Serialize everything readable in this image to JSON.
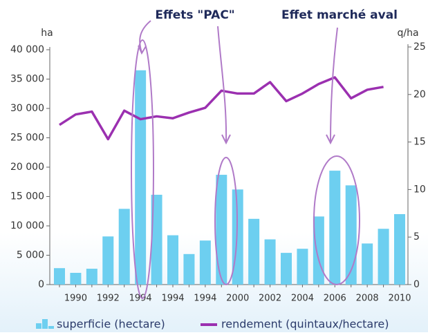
{
  "chart_data": {
    "type": "bar-line",
    "annotations": [
      "Effets \"PAC\"",
      "Effet marché aval"
    ],
    "y_label": "ha",
    "y2_label": "q/ha",
    "categories": [
      null,
      "1990",
      null,
      "1992",
      null,
      "1994",
      null,
      "1994",
      null,
      "1994",
      null,
      "2000",
      null,
      "2002",
      null,
      "2004",
      null,
      "2006",
      null,
      "2008",
      null,
      "2010"
    ],
    "ylim": [
      0,
      40000
    ],
    "yticks": [
      0,
      {
        "value": 5000,
        "label": "5 000"
      },
      {
        "value": 10000,
        "label": "10 000"
      },
      {
        "value": 15000,
        "label": "15 000"
      },
      {
        "value": 20000,
        "label": "20 000"
      },
      {
        "value": 25000,
        "label": "25 000"
      },
      {
        "value": 30000,
        "label": "30 000"
      },
      {
        "value": 35000,
        "label": "35 000"
      },
      {
        "value": 40000,
        "label": "40 000"
      }
    ],
    "y2lim": [
      0,
      25
    ],
    "y2ticks": [
      0,
      5,
      10,
      15,
      20,
      25
    ],
    "series": [
      {
        "name": "superficie (hectare)",
        "type": "bar",
        "color": "#6dcff0",
        "values": [
          2800,
          2000,
          2700,
          8200,
          12900,
          36500,
          15300,
          8400,
          5200,
          7500,
          18700,
          16200,
          11200,
          7700,
          5400,
          6100,
          11600,
          19400,
          16900,
          7000,
          9500,
          12000
        ]
      },
      {
        "name": "rendement (quintaux/hectare)",
        "type": "line",
        "axis": "y2",
        "color": "#9b30b0",
        "values": [
          16.8,
          17.9,
          18.2,
          15.3,
          18.3,
          17.4,
          17.7,
          17.5,
          18.1,
          18.6,
          20.4,
          20.1,
          20.1,
          21.3,
          19.3,
          20.1,
          21.1,
          21.8,
          19.6,
          20.5,
          20.8,
          null
        ]
      }
    ]
  }
}
